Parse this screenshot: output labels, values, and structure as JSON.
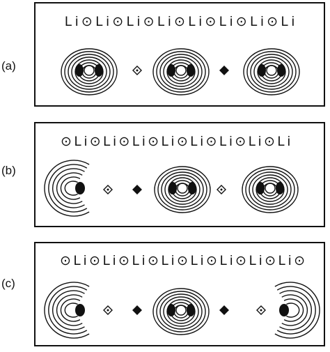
{
  "panels": [
    {
      "label": "(a)",
      "chain": "Li⊙Li⊙Li⊙Li⊙Li⊙Li⊙Li⊙Li"
    },
    {
      "label": "(b)",
      "chain": "⊙Li⊙Li⊙Li⊙Li⊙Li⊙Li⊙Li⊙Li"
    },
    {
      "label": "(c)",
      "chain": "⊙Li⊙Li⊙Li⊙Li⊙Li⊙Li⊙Li⊙Li⊙"
    }
  ]
}
